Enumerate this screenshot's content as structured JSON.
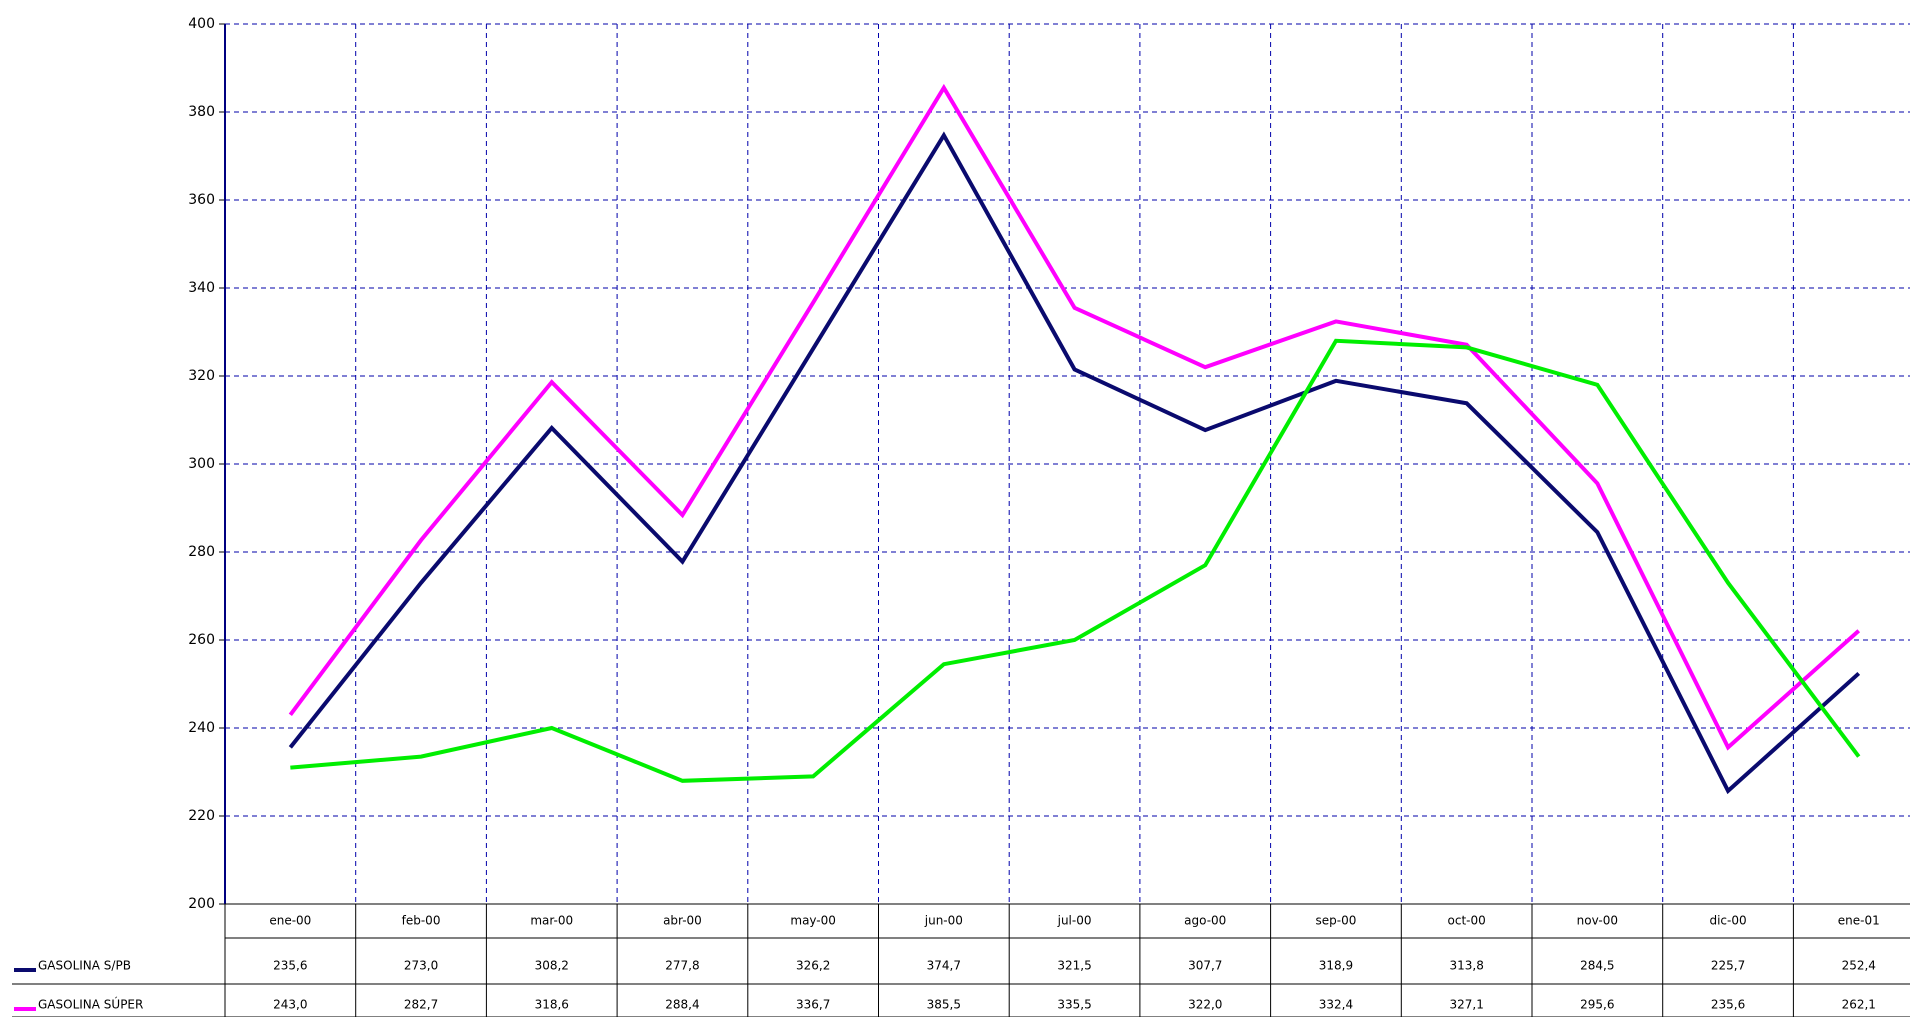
{
  "chart_data": {
    "type": "line",
    "categories": [
      "ene-00",
      "feb-00",
      "mar-00",
      "abr-00",
      "may-00",
      "jun-00",
      "jul-00",
      "ago-00",
      "sep-00",
      "oct-00",
      "nov-00",
      "dic-00",
      "ene-01"
    ],
    "series": [
      {
        "name": "GASOLINA S/PB",
        "color": "#0a0a6e",
        "values": [
          235.6,
          273.0,
          308.2,
          277.8,
          326.2,
          374.7,
          321.5,
          307.7,
          318.9,
          313.8,
          284.5,
          225.7,
          252.4
        ],
        "value_labels": [
          "235,6",
          "273,0",
          "308,2",
          "277,8",
          "326,2",
          "374,7",
          "321,5",
          "307,7",
          "318,9",
          "313,8",
          "284,5",
          "225,7",
          "252,4"
        ]
      },
      {
        "name": "GASOLINA SÚPER",
        "color": "#ff00ff",
        "values": [
          243.0,
          282.7,
          318.6,
          288.4,
          336.7,
          385.5,
          335.5,
          322.0,
          332.4,
          327.1,
          295.6,
          235.6,
          262.1
        ],
        "value_labels": [
          "243,0",
          "282,7",
          "318,6",
          "288,4",
          "336,7",
          "385,5",
          "335,5",
          "322,0",
          "332,4",
          "327,1",
          "295,6",
          "235,6",
          "262,1"
        ]
      },
      {
        "color": "#00ee00",
        "values": [
          231,
          233.5,
          240,
          228,
          229,
          254.5,
          260,
          277,
          328,
          326.5,
          318,
          273,
          233.5
        ]
      }
    ],
    "ylim": [
      200,
      400
    ],
    "yticks": [
      200,
      220,
      240,
      260,
      280,
      300,
      320,
      340,
      360,
      380,
      400
    ],
    "grid": true
  }
}
